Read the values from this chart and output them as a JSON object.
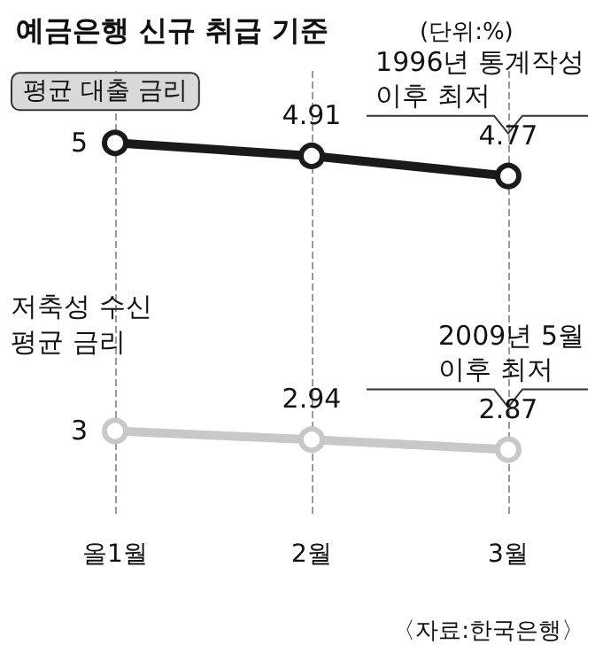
{
  "chart_data": {
    "type": "line",
    "title": "예금은행 신규 취급 기준",
    "subtitle": "(단위:%)",
    "categories": [
      "올1월",
      "2월",
      "3월"
    ],
    "series": [
      {
        "name": "평균 대출 금리",
        "color": "#1a1a1a",
        "values": [
          5,
          4.91,
          4.77
        ]
      },
      {
        "name": "저축성 수신\n평균 금리",
        "color": "#c8c8c8",
        "values": [
          3,
          2.94,
          2.87
        ]
      }
    ],
    "data_labels": true,
    "annotations": [
      {
        "text": "1996년 통계작성\n이후 최저",
        "x": "3월",
        "y": 4.77
      },
      {
        "text": "2009년 5월\n이후 최저",
        "x": "3월",
        "y": 2.87
      },
      "〈자료:한국은행〉"
    ],
    "ylim": [
      2.4,
      5.5
    ],
    "tick_labels": "x",
    "grid": "x",
    "marker": "circle",
    "line_style": "solid"
  }
}
